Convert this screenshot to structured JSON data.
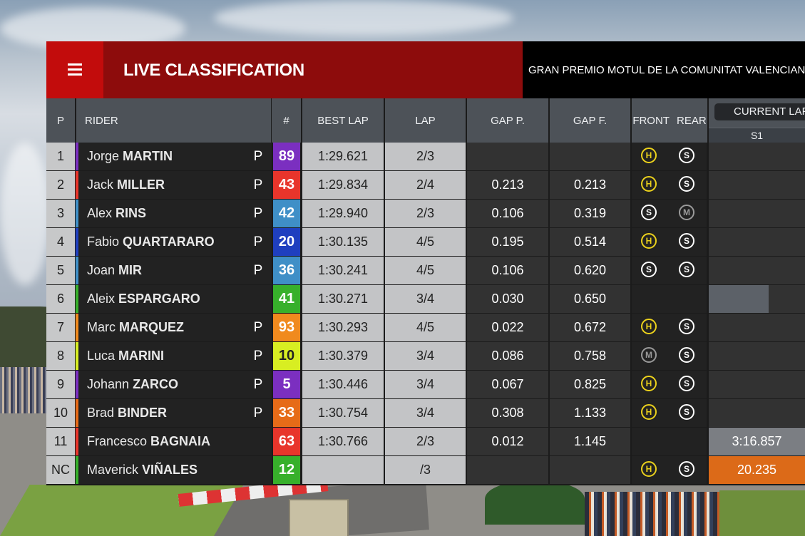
{
  "header": {
    "title": "LIVE CLASSIFICATION",
    "event": "GRAN PREMIO MOTUL DE LA COMUNITAT VALENCIANA",
    "menu_icon": "hamburger-menu-icon"
  },
  "columns": {
    "pos": "P",
    "rider": "RIDER",
    "number": "#",
    "best_lap": "BEST LAP",
    "lap": "LAP",
    "gap_prev": "GAP P.",
    "gap_first": "GAP F.",
    "front": "FRONT",
    "rear": "REAR",
    "current_lap": "CURRENT LAP",
    "sector": "S1"
  },
  "colors": {
    "header_red": "#c20c0c",
    "title_band": "#8d0c0c",
    "tyre_hard": "#ecd21c",
    "tyre_soft": "#ffffff",
    "tyre_medium": "#9a9a9a"
  },
  "rows": [
    {
      "pos": "1",
      "first": "Jorge",
      "last": "MARTIN",
      "pit": "P",
      "num": "89",
      "num_color": "#7b2fc0",
      "bar_color": "#7b2fc0",
      "best": "1:29.621",
      "lap": "2/3",
      "gap_p": "",
      "gap_f": "",
      "front": "H",
      "rear": "S",
      "cur": "",
      "cur_style": ""
    },
    {
      "pos": "2",
      "first": "Jack",
      "last": "MILLER",
      "pit": "P",
      "num": "43",
      "num_color": "#e8352b",
      "bar_color": "#e8352b",
      "best": "1:29.834",
      "lap": "2/4",
      "gap_p": "0.213",
      "gap_f": "0.213",
      "front": "H",
      "rear": "S",
      "cur": "",
      "cur_style": ""
    },
    {
      "pos": "3",
      "first": "Alex",
      "last": "RINS",
      "pit": "P",
      "num": "42",
      "num_color": "#3f8fc7",
      "bar_color": "#3f8fc7",
      "best": "1:29.940",
      "lap": "2/3",
      "gap_p": "0.106",
      "gap_f": "0.319",
      "front": "S",
      "rear": "M",
      "cur": "",
      "cur_style": ""
    },
    {
      "pos": "4",
      "first": "Fabio",
      "last": "QUARTARARO",
      "pit": "P",
      "num": "20",
      "num_color": "#1f3fbf",
      "bar_color": "#1f3fbf",
      "best": "1:30.135",
      "lap": "4/5",
      "gap_p": "0.195",
      "gap_f": "0.514",
      "front": "H",
      "rear": "S",
      "cur": "",
      "cur_style": ""
    },
    {
      "pos": "5",
      "first": "Joan",
      "last": "MIR",
      "pit": "P",
      "num": "36",
      "num_color": "#3f8fc7",
      "bar_color": "#3f8fc7",
      "best": "1:30.241",
      "lap": "4/5",
      "gap_p": "0.106",
      "gap_f": "0.620",
      "front": "S",
      "rear": "S",
      "cur": "",
      "cur_style": ""
    },
    {
      "pos": "6",
      "first": "Aleix",
      "last": "ESPARGARO",
      "pit": "",
      "num": "41",
      "num_color": "#37b02b",
      "bar_color": "#37b02b",
      "best": "1:30.271",
      "lap": "3/4",
      "gap_p": "0.030",
      "gap_f": "0.650",
      "front": "",
      "rear": "",
      "cur": "",
      "cur_style": "partial",
      "sector_progress": 0.62
    },
    {
      "pos": "7",
      "first": "Marc",
      "last": "MARQUEZ",
      "pit": "P",
      "num": "93",
      "num_color": "#f08a1e",
      "bar_color": "#f08a1e",
      "best": "1:30.293",
      "lap": "4/5",
      "gap_p": "0.022",
      "gap_f": "0.672",
      "front": "H",
      "rear": "S",
      "cur": "",
      "cur_style": ""
    },
    {
      "pos": "8",
      "first": "Luca",
      "last": "MARINI",
      "pit": "P",
      "num": "10",
      "num_color": "#d8ee22",
      "num_text": "#222222",
      "bar_color": "#d8ee22",
      "best": "1:30.379",
      "lap": "3/4",
      "gap_p": "0.086",
      "gap_f": "0.758",
      "front": "M",
      "rear": "S",
      "cur": "",
      "cur_style": ""
    },
    {
      "pos": "9",
      "first": "Johann",
      "last": "ZARCO",
      "pit": "P",
      "num": "5",
      "num_color": "#7b2fc0",
      "bar_color": "#7b2fc0",
      "best": "1:30.446",
      "lap": "3/4",
      "gap_p": "0.067",
      "gap_f": "0.825",
      "front": "H",
      "rear": "S",
      "cur": "",
      "cur_style": ""
    },
    {
      "pos": "10",
      "first": "Brad",
      "last": "BINDER",
      "pit": "P",
      "num": "33",
      "num_color": "#e66b18",
      "bar_color": "#e66b18",
      "best": "1:30.754",
      "lap": "3/4",
      "gap_p": "0.308",
      "gap_f": "1.133",
      "front": "H",
      "rear": "S",
      "cur": "",
      "cur_style": ""
    },
    {
      "pos": "11",
      "first": "Francesco",
      "last": "BAGNAIA",
      "pit": "",
      "num": "63",
      "num_color": "#e8352b",
      "bar_color": "#e8352b",
      "best": "1:30.766",
      "lap": "2/3",
      "gap_p": "0.012",
      "gap_f": "1.145",
      "front": "",
      "rear": "",
      "cur": "3:16.857",
      "cur_style": "grey"
    },
    {
      "pos": "NC",
      "first": "Maverick",
      "last": "VIÑALES",
      "pit": "",
      "num": "12",
      "num_color": "#37b02b",
      "bar_color": "#37b02b",
      "best": "",
      "lap": "/3",
      "gap_p": "",
      "gap_f": "",
      "front": "H",
      "rear": "S",
      "cur": "20.235",
      "cur_style": "orange"
    }
  ]
}
